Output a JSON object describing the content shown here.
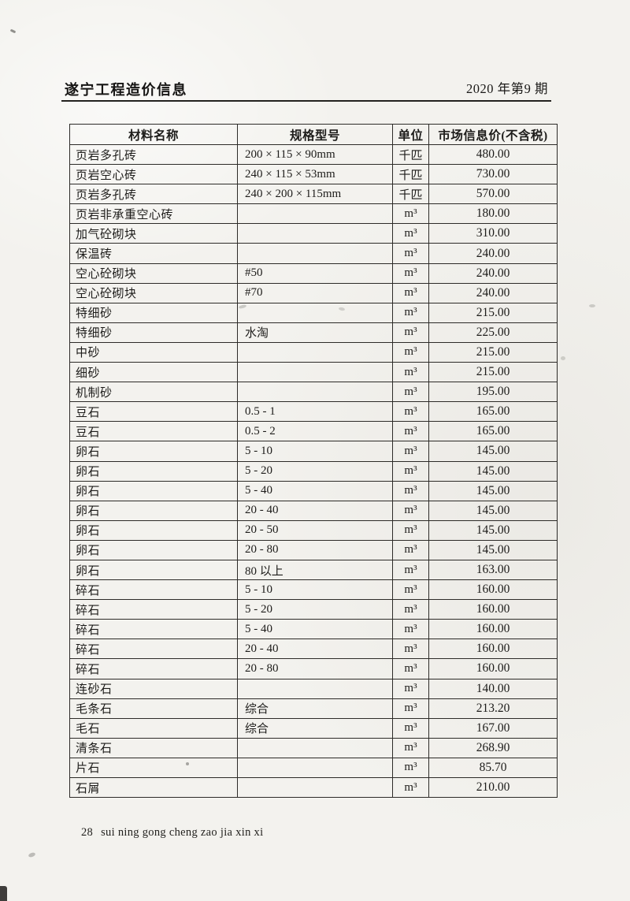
{
  "page": {
    "title": "遂宁工程造价信息",
    "issue": "2020 年第9 期",
    "footer": {
      "page_number": "28",
      "pinyin": "sui ning gong cheng zao jia xin xi"
    }
  },
  "table": {
    "columns": [
      "材料名称",
      "规格型号",
      "单位",
      "市场信息价(不含税)"
    ],
    "rows": [
      [
        "页岩多孔砖",
        "200 × 115 × 90mm",
        "千匹",
        "480.00"
      ],
      [
        "页岩空心砖",
        "240 × 115 × 53mm",
        "千匹",
        "730.00"
      ],
      [
        "页岩多孔砖",
        "240 × 200 × 115mm",
        "千匹",
        "570.00"
      ],
      [
        "页岩非承重空心砖",
        "",
        "m³",
        "180.00"
      ],
      [
        "加气砼砌块",
        "",
        "m³",
        "310.00"
      ],
      [
        "保温砖",
        "",
        "m³",
        "240.00"
      ],
      [
        "空心砼砌块",
        "#50",
        "m³",
        "240.00"
      ],
      [
        "空心砼砌块",
        "#70",
        "m³",
        "240.00"
      ],
      [
        "特细砂",
        "",
        "m³",
        "215.00"
      ],
      [
        "特细砂",
        "水淘",
        "m³",
        "225.00"
      ],
      [
        "中砂",
        "",
        "m³",
        "215.00"
      ],
      [
        "细砂",
        "",
        "m³",
        "215.00"
      ],
      [
        "机制砂",
        "",
        "m³",
        "195.00"
      ],
      [
        "豆石",
        "0.5 - 1",
        "m³",
        "165.00"
      ],
      [
        "豆石",
        "0.5 - 2",
        "m³",
        "165.00"
      ],
      [
        "卵石",
        "5 - 10",
        "m³",
        "145.00"
      ],
      [
        "卵石",
        "5 - 20",
        "m³",
        "145.00"
      ],
      [
        "卵石",
        "5 - 40",
        "m³",
        "145.00"
      ],
      [
        "卵石",
        "20 - 40",
        "m³",
        "145.00"
      ],
      [
        "卵石",
        "20 - 50",
        "m³",
        "145.00"
      ],
      [
        "卵石",
        "20 - 80",
        "m³",
        "145.00"
      ],
      [
        "卵石",
        "80 以上",
        "m³",
        "163.00"
      ],
      [
        "碎石",
        "5 - 10",
        "m³",
        "160.00"
      ],
      [
        "碎石",
        "5 - 20",
        "m³",
        "160.00"
      ],
      [
        "碎石",
        "5 - 40",
        "m³",
        "160.00"
      ],
      [
        "碎石",
        "20 - 40",
        "m³",
        "160.00"
      ],
      [
        "碎石",
        "20 - 80",
        "m³",
        "160.00"
      ],
      [
        "连砂石",
        "",
        "m³",
        "140.00"
      ],
      [
        "毛条石",
        "综合",
        "m³",
        "213.20"
      ],
      [
        "毛石",
        "综合",
        "m³",
        "167.00"
      ],
      [
        "清条石",
        "",
        "m³",
        "268.90"
      ],
      [
        "片石",
        "",
        "m³",
        "85.70"
      ],
      [
        "石屑",
        "",
        "m³",
        "210.00"
      ]
    ]
  }
}
